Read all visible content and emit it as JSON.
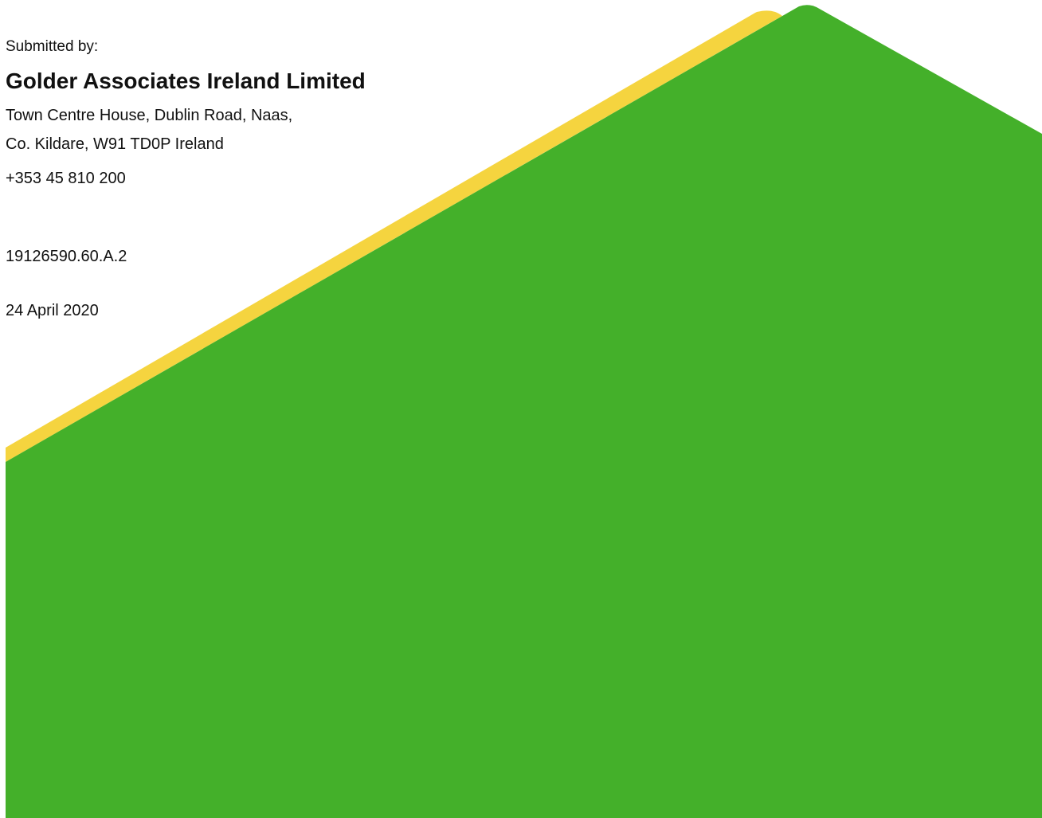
{
  "cover": {
    "submitted_by_label": "Submitted by:",
    "company_name": "Golder Associates Ireland Limited",
    "address_line_1": "Town Centre House, Dublin Road, Naas,",
    "address_line_2": "Co. Kildare, W91 TD0P Ireland",
    "phone": "+353 45 810 200",
    "reference": "19126590.60.A.2",
    "date": "24 April 2020"
  },
  "colors": {
    "green": "#44b02a",
    "yellow": "#f5d43f",
    "text": "#111111",
    "background": "#ffffff"
  }
}
